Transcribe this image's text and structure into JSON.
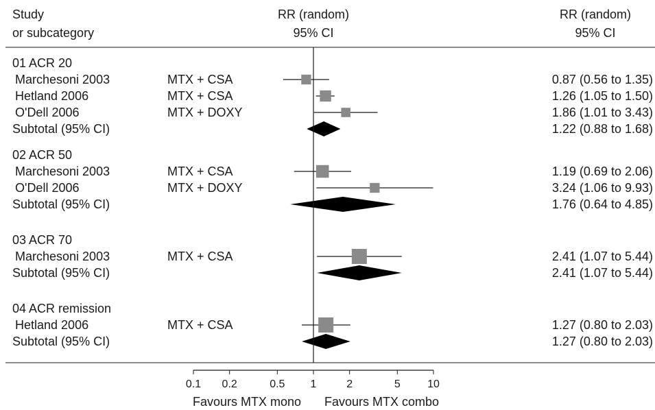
{
  "chart_data": {
    "type": "forest",
    "header": {
      "study_line1": "Study",
      "study_line2": "or subcategory",
      "plot_line1": "RR (random)",
      "plot_line2": "95% CI",
      "value_line1": "RR (random)",
      "value_line2": "95% CI"
    },
    "x_axis": {
      "scale": "log",
      "ticks": [
        0.1,
        0.2,
        0.5,
        1,
        2,
        5,
        10
      ],
      "tick_labels": [
        "0.1",
        "0.2",
        "0.5",
        "1",
        "2",
        "5",
        "10"
      ],
      "reference_line": 1,
      "left_label": "Favours MTX mono",
      "right_label": "Favours MTX combo"
    },
    "groups": [
      {
        "title": "01 ACR 20",
        "studies": [
          {
            "name": "Marchesoni 2003",
            "treatment": "MTX + CSA",
            "rr": 0.87,
            "lo": 0.56,
            "hi": 1.35,
            "ci_text": "0.87 (0.56 to 1.35)",
            "weight": 0.45
          },
          {
            "name": "Hetland 2006",
            "treatment": "MTX + CSA",
            "rr": 1.26,
            "lo": 1.05,
            "hi": 1.5,
            "ci_text": "1.26 (1.05 to 1.50)",
            "weight": 0.6
          },
          {
            "name": "O'Dell 2006",
            "treatment": "MTX + DOXY",
            "rr": 1.86,
            "lo": 1.01,
            "hi": 3.43,
            "ci_text": "1.86 (1.01 to 3.43)",
            "weight": 0.4
          }
        ],
        "subtotal": {
          "label": "Subtotal (95% CI)",
          "rr": 1.22,
          "lo": 0.88,
          "hi": 1.68,
          "ci_text": "1.22 (0.88 to 1.68)"
        }
      },
      {
        "title": "02 ACR 50",
        "studies": [
          {
            "name": "Marchesoni 2003",
            "treatment": "MTX + CSA",
            "rr": 1.19,
            "lo": 0.69,
            "hi": 2.06,
            "ci_text": "1.19 (0.69 to 2.06)",
            "weight": 0.75
          },
          {
            "name": "O'Dell 2006",
            "treatment": "MTX + DOXY",
            "rr": 3.24,
            "lo": 1.06,
            "hi": 9.93,
            "ci_text": "3.24 (1.06 to 9.93)",
            "weight": 0.45
          }
        ],
        "subtotal": {
          "label": "Subtotal (95% CI)",
          "rr": 1.76,
          "lo": 0.64,
          "hi": 4.85,
          "ci_text": "1.76 (0.64 to 4.85)"
        }
      },
      {
        "title": "03 ACR 70",
        "studies": [
          {
            "name": "Marchesoni 2003",
            "treatment": "MTX + CSA",
            "rr": 2.41,
            "lo": 1.07,
            "hi": 5.44,
            "ci_text": "2.41 (1.07 to 5.44)",
            "weight": 1.0
          }
        ],
        "subtotal": {
          "label": "Subtotal (95% CI)",
          "rr": 2.41,
          "lo": 1.07,
          "hi": 5.44,
          "ci_text": "2.41 (1.07 to 5.44)"
        }
      },
      {
        "title": "04 ACR remission",
        "studies": [
          {
            "name": "Hetland 2006",
            "treatment": "MTX + CSA",
            "rr": 1.27,
            "lo": 0.8,
            "hi": 2.03,
            "ci_text": "1.27 (0.80 to 2.03)",
            "weight": 1.0
          }
        ],
        "subtotal": {
          "label": "Subtotal (95% CI)",
          "rr": 1.27,
          "lo": 0.8,
          "hi": 2.03,
          "ci_text": "1.27 (0.80 to 2.03)"
        }
      }
    ],
    "colors": {
      "box": "#8a8a8a",
      "diamond": "#000000",
      "line": "#1a1a1a"
    }
  }
}
